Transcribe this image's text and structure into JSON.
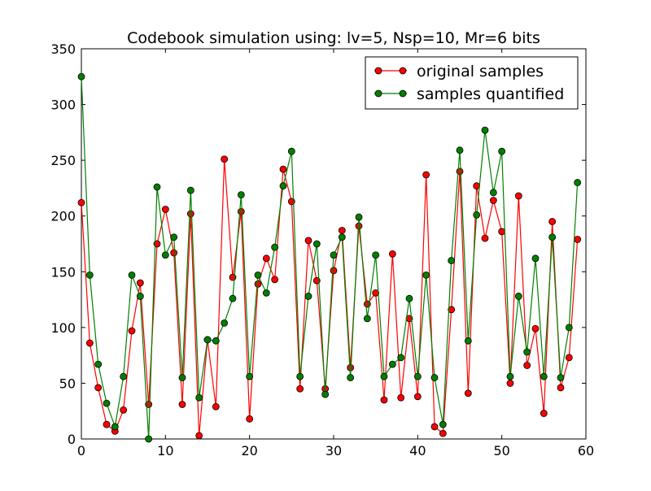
{
  "chart_data": {
    "type": "line",
    "title": "Codebook simulation using: lv=5, Nsp=10, Mr=6 bits",
    "xlabel": "",
    "ylabel": "",
    "xlim": [
      0,
      60
    ],
    "ylim": [
      0,
      350
    ],
    "xticks": [
      0,
      10,
      20,
      30,
      40,
      50,
      60
    ],
    "yticks": [
      0,
      50,
      100,
      150,
      200,
      250,
      300,
      350
    ],
    "grid": false,
    "legend_position": "top-right",
    "x": [
      0,
      1,
      2,
      3,
      4,
      5,
      6,
      7,
      8,
      9,
      10,
      11,
      12,
      13,
      14,
      15,
      16,
      17,
      18,
      19,
      20,
      21,
      22,
      23,
      24,
      25,
      26,
      27,
      28,
      29,
      30,
      31,
      32,
      33,
      34,
      35,
      36,
      37,
      38,
      39,
      40,
      41,
      42,
      43,
      44,
      45,
      46,
      47,
      48,
      49,
      50,
      51,
      52,
      53,
      54,
      55,
      56,
      57,
      58,
      59
    ],
    "series": [
      {
        "name": "original samples",
        "color": "#ff0000",
        "values": [
          212,
          86,
          46,
          13,
          7,
          26,
          97,
          140,
          31,
          175,
          206,
          167,
          31,
          202,
          3,
          89,
          29,
          251,
          145,
          204,
          18,
          139,
          162,
          143,
          242,
          213,
          45,
          178,
          142,
          45,
          151,
          187,
          64,
          191,
          121,
          131,
          35,
          166,
          37,
          108,
          38,
          237,
          11,
          5,
          116,
          240,
          41,
          227,
          180,
          214,
          186,
          50,
          218,
          66,
          99,
          23,
          195,
          46,
          73,
          179
        ]
      },
      {
        "name": "samples quantified",
        "color": "#008000",
        "values": [
          325,
          147,
          67,
          32,
          11,
          56,
          147,
          128,
          0,
          226,
          165,
          181,
          55,
          223,
          37,
          89,
          88,
          104,
          126,
          219,
          56,
          147,
          131,
          172,
          227,
          258,
          56,
          128,
          175,
          40,
          165,
          181,
          55,
          199,
          108,
          165,
          56,
          67,
          73,
          126,
          56,
          147,
          55,
          13,
          160,
          259,
          88,
          201,
          277,
          221,
          258,
          56,
          128,
          78,
          162,
          56,
          181,
          55,
          100,
          230
        ]
      }
    ]
  }
}
